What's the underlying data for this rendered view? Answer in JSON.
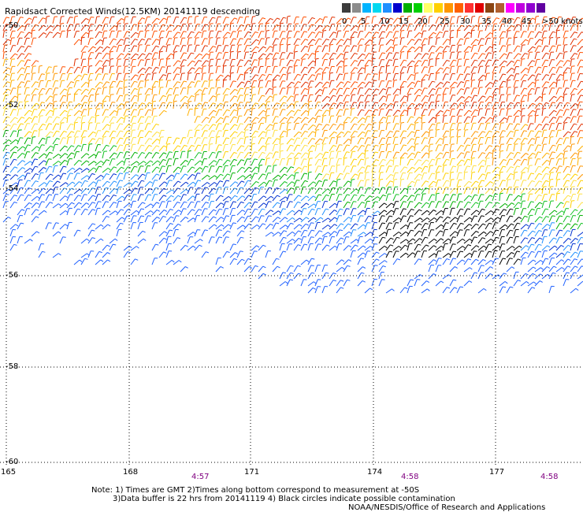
{
  "title": "Rapidsact Corrected Winds(12.5KM) 20141119 descending",
  "legend": {
    "colors": [
      "#3c3c3c",
      "#8c8c8c",
      "#00b4ff",
      "#00d8f0",
      "#1e90ff",
      "#0000cd",
      "#00b000",
      "#00d000",
      "#ffff66",
      "#ffd000",
      "#ff9600",
      "#ff6000",
      "#ff3030",
      "#e00000",
      "#8b4513",
      "#b06030",
      "#ff00ff",
      "#c000e0",
      "#9000d0",
      "#6000a0"
    ],
    "labels": [
      "0",
      "5",
      "10",
      "15",
      "20",
      "25",
      "30",
      "35",
      "40",
      "45",
      ">50 knots"
    ]
  },
  "axes": {
    "lat_labels": [
      "-50",
      "-52",
      "-54",
      "-56",
      "-58",
      "-60"
    ],
    "lon_labels": [
      "165",
      "168",
      "171",
      "174",
      "177"
    ]
  },
  "times": [
    "4:57",
    "4:58",
    "4:58"
  ],
  "notes": {
    "line1": "Note: 1) Times are GMT 2)Times along bottom correspond to measurement at -50S",
    "line2": "3)Data buffer is 22 hrs from 20141119 4) Black circles indicate possible contamination",
    "line3": "NOAA/NESDIS/Office of Research and Applications"
  }
}
